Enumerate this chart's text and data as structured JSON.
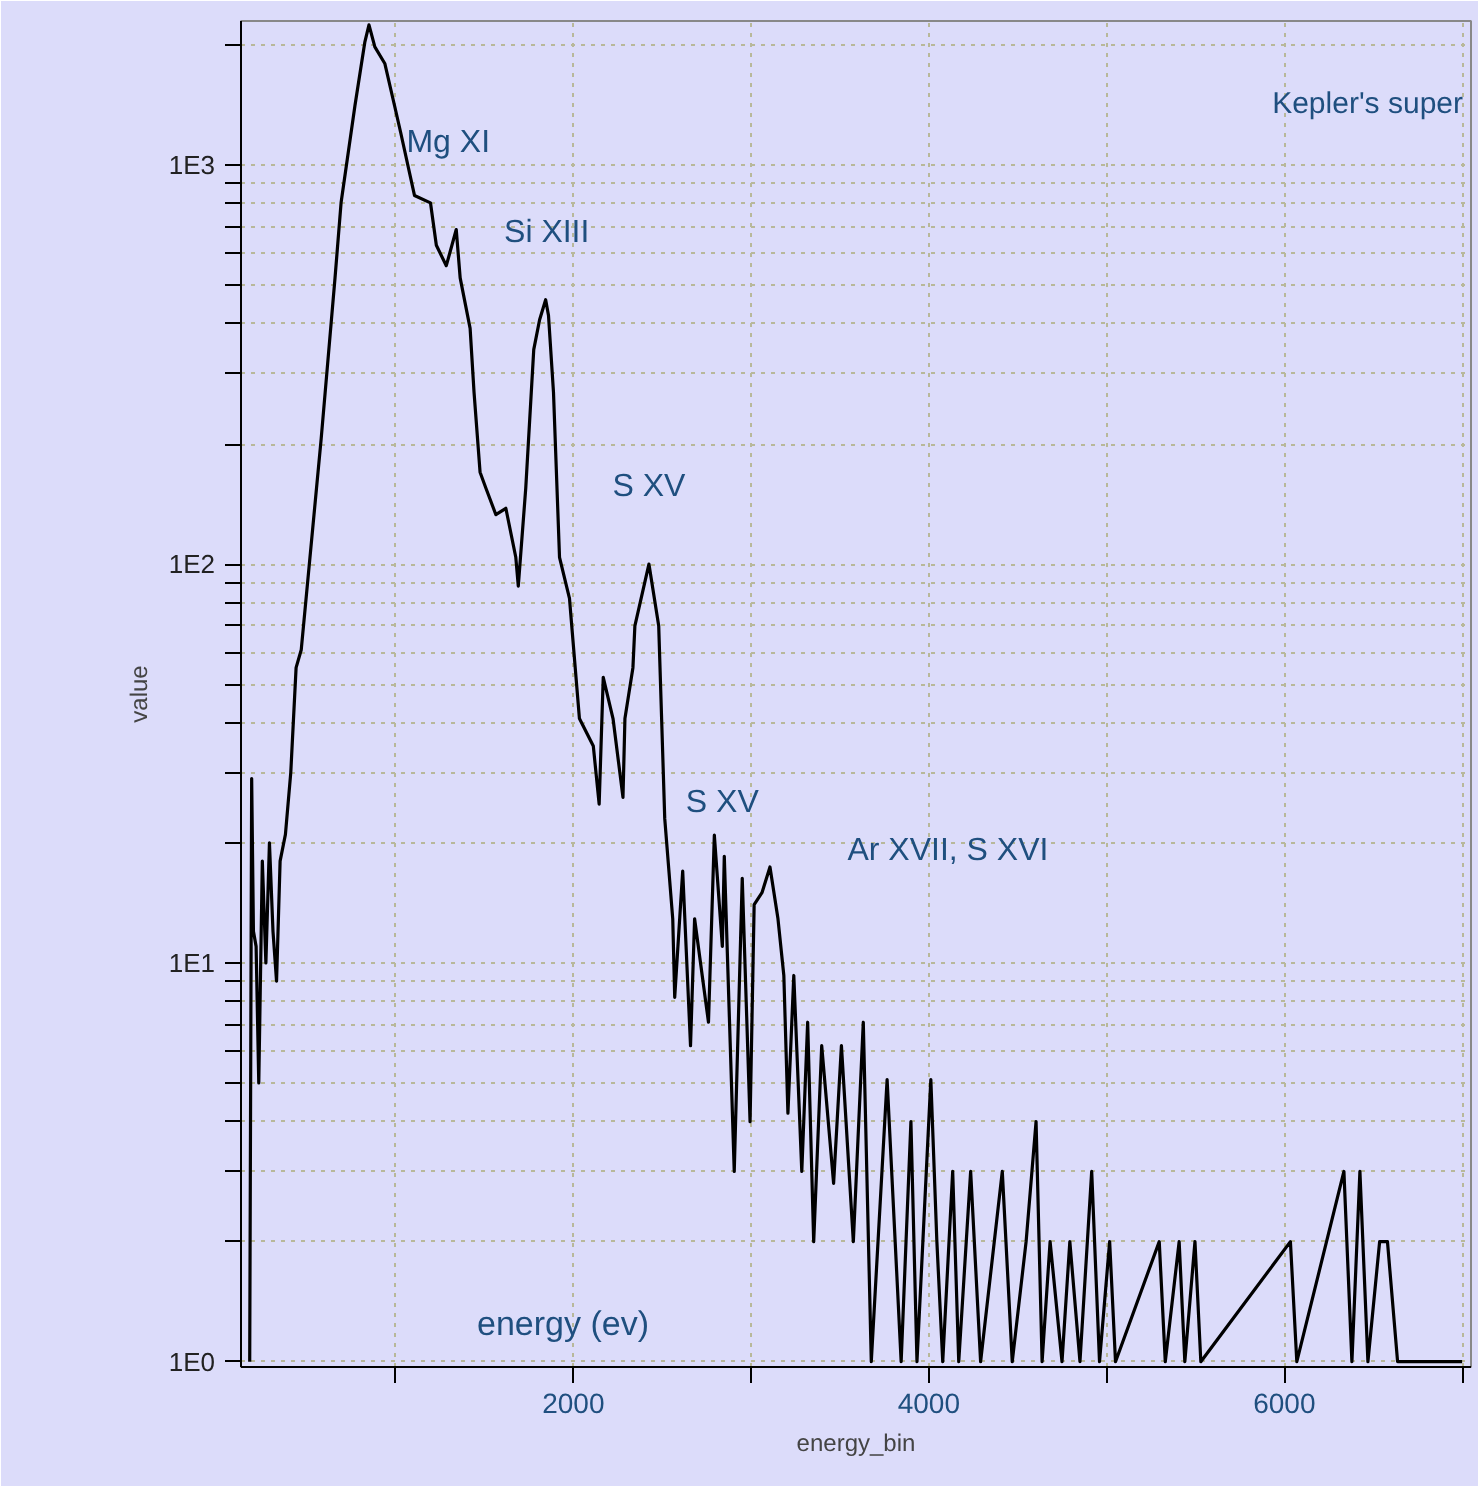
{
  "chart_data": {
    "type": "line",
    "title": "Kepler's super",
    "xlabel": "energy_bin",
    "ylabel": "value",
    "log": "y",
    "grid": true,
    "marker": "none",
    "line_style": "solid",
    "xlim": [
      130,
      7050
    ],
    "ylim": [
      0.97,
      2300
    ],
    "xticks": [
      {
        "value": 1000,
        "label": null
      },
      2000,
      {
        "value": 3000,
        "label": null
      },
      4000,
      {
        "value": 5000,
        "label": null
      },
      6000,
      {
        "value": 7000,
        "label": null
      }
    ],
    "yticks": [
      {
        "value": 1,
        "label": "1E0"
      },
      {
        "value": 2,
        "label": null
      },
      {
        "value": 3,
        "label": null
      },
      {
        "value": 4,
        "label": null
      },
      {
        "value": 5,
        "label": null
      },
      {
        "value": 6,
        "label": null
      },
      {
        "value": 7,
        "label": null
      },
      {
        "value": 8,
        "label": null
      },
      {
        "value": 9,
        "label": null
      },
      {
        "value": 10,
        "label": "1E1"
      },
      {
        "value": 20,
        "label": null
      },
      {
        "value": 30,
        "label": null
      },
      {
        "value": 40,
        "label": null
      },
      {
        "value": 50,
        "label": null
      },
      {
        "value": 60,
        "label": null
      },
      {
        "value": 70,
        "label": null
      },
      {
        "value": 80,
        "label": null
      },
      {
        "value": 90,
        "label": null
      },
      {
        "value": 100,
        "label": "1E2"
      },
      {
        "value": 200,
        "label": null
      },
      {
        "value": 300,
        "label": null
      },
      {
        "value": 400,
        "label": null
      },
      {
        "value": 500,
        "label": null
      },
      {
        "value": 600,
        "label": null
      },
      {
        "value": 700,
        "label": null
      },
      {
        "value": 800,
        "label": null
      },
      {
        "value": 900,
        "label": null
      },
      {
        "value": 1000,
        "label": "1E3"
      },
      {
        "value": 2000,
        "label": null
      }
    ],
    "series": [
      {
        "color": "#000000",
        "x": [
          179,
          190,
          200,
          215,
          230,
          250,
          270,
          290,
          310,
          330,
          350,
          380,
          410,
          440,
          469,
          581,
          659,
          693,
          771,
          827,
          850,
          883,
          939,
          994,
          1028,
          1106,
          1196,
          1229,
          1285,
          1341,
          1363,
          1419,
          1441,
          1475,
          1508,
          1564,
          1620,
          1676,
          1690,
          1732,
          1777,
          1810,
          1844,
          1860,
          1888,
          1922,
          1978,
          2034,
          2112,
          2145,
          2168,
          2223,
          2279,
          2290,
          2335,
          2346,
          2425,
          2480,
          2514,
          2559,
          2570,
          2615,
          2659,
          2682,
          2760,
          2793,
          2838,
          2849,
          2905,
          2950,
          2994,
          3017,
          3061,
          3106,
          3151,
          3184,
          3207,
          3240,
          3285,
          3318,
          3352,
          3397,
          3464,
          3508,
          3575,
          3631,
          3676,
          3765,
          3844,
          3899,
          3933,
          4011,
          4045,
          4078,
          4134,
          4168,
          4235,
          4291,
          4413,
          4469,
          4547,
          4603,
          4637,
          4682,
          4749,
          4793,
          4850,
          4916,
          4960,
          5017,
          5050,
          5296,
          5330,
          5408,
          5440,
          5497,
          5530,
          6034,
          6070,
          6335,
          6380,
          6425,
          6470,
          6536,
          6580,
          6637,
          7000
        ],
        "values": [
          1,
          29,
          12,
          11,
          5,
          18,
          10,
          20,
          12,
          9,
          18,
          21,
          30,
          55,
          61,
          206,
          522,
          805,
          1410,
          2040,
          2250,
          1980,
          1800,
          1410,
          1210,
          840,
          805,
          630,
          560,
          690,
          522,
          390,
          270,
          170,
          155,
          133,
          138,
          104,
          88,
          155,
          345,
          410,
          460,
          420,
          270,
          104,
          82,
          41,
          35,
          25,
          52,
          41,
          26,
          41,
          55,
          70,
          100,
          70,
          23,
          12.9,
          8.2,
          17,
          6.2,
          12.9,
          7.1,
          20.9,
          11,
          18.5,
          3,
          16.3,
          4,
          14,
          15,
          17.4,
          12.9,
          9.3,
          4.2,
          9.3,
          3,
          7.1,
          2,
          6.2,
          2.8,
          6.2,
          2,
          7.1,
          1,
          5.1,
          1,
          4,
          1,
          5.1,
          2,
          1,
          3,
          1,
          3,
          1,
          3,
          1,
          2,
          4,
          1,
          2,
          1,
          2,
          1,
          3,
          1,
          2,
          1,
          2,
          1,
          2,
          1,
          2,
          1,
          2,
          1,
          3,
          1,
          3,
          1,
          2,
          2,
          1,
          1
        ]
      }
    ],
    "annotations": [
      {
        "text": "Mg XI",
        "x": 1296,
        "y": 690
      },
      {
        "text": "Si XIII",
        "x": 1850,
        "y": 460
      },
      {
        "text": "S XV",
        "x": 2425,
        "y": 100
      },
      {
        "text": "S XV",
        "x": 2838,
        "y": 18.5
      },
      {
        "text": "Ar XVII, S XVI",
        "x": 3207,
        "y": 13.4
      },
      "energy (ev)"
    ]
  }
}
